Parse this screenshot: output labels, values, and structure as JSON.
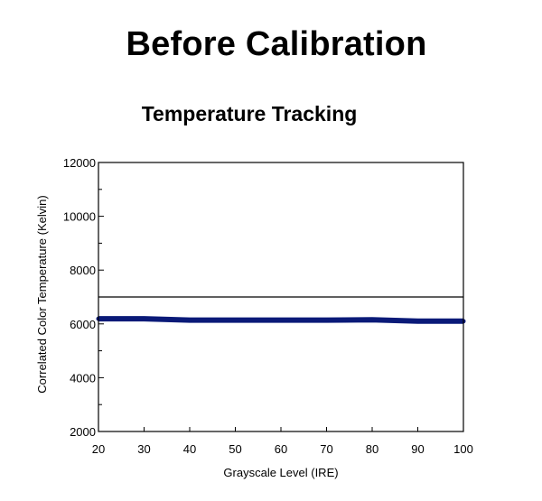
{
  "page": {
    "title": "Before Calibration"
  },
  "chart_data": {
    "type": "line",
    "title": "Temperature Tracking",
    "xlabel": "Grayscale Level (IRE)",
    "ylabel": "Correlated Color Temperature (Kelvin)",
    "xlim": [
      20,
      100
    ],
    "ylim": [
      2000,
      12000
    ],
    "x_ticks": [
      20,
      30,
      40,
      50,
      60,
      70,
      80,
      90,
      100
    ],
    "y_ticks": [
      2000,
      4000,
      6000,
      8000,
      10000,
      12000
    ],
    "grid": false,
    "legend": "none",
    "reference_line": {
      "y": 7000,
      "color": "#000000"
    },
    "series": [
      {
        "color": "#0a1a78",
        "x": [
          20,
          30,
          40,
          50,
          60,
          70,
          80,
          90,
          100
        ],
        "y": [
          6190,
          6190,
          6140,
          6140,
          6140,
          6140,
          6150,
          6100,
          6100
        ]
      }
    ]
  }
}
